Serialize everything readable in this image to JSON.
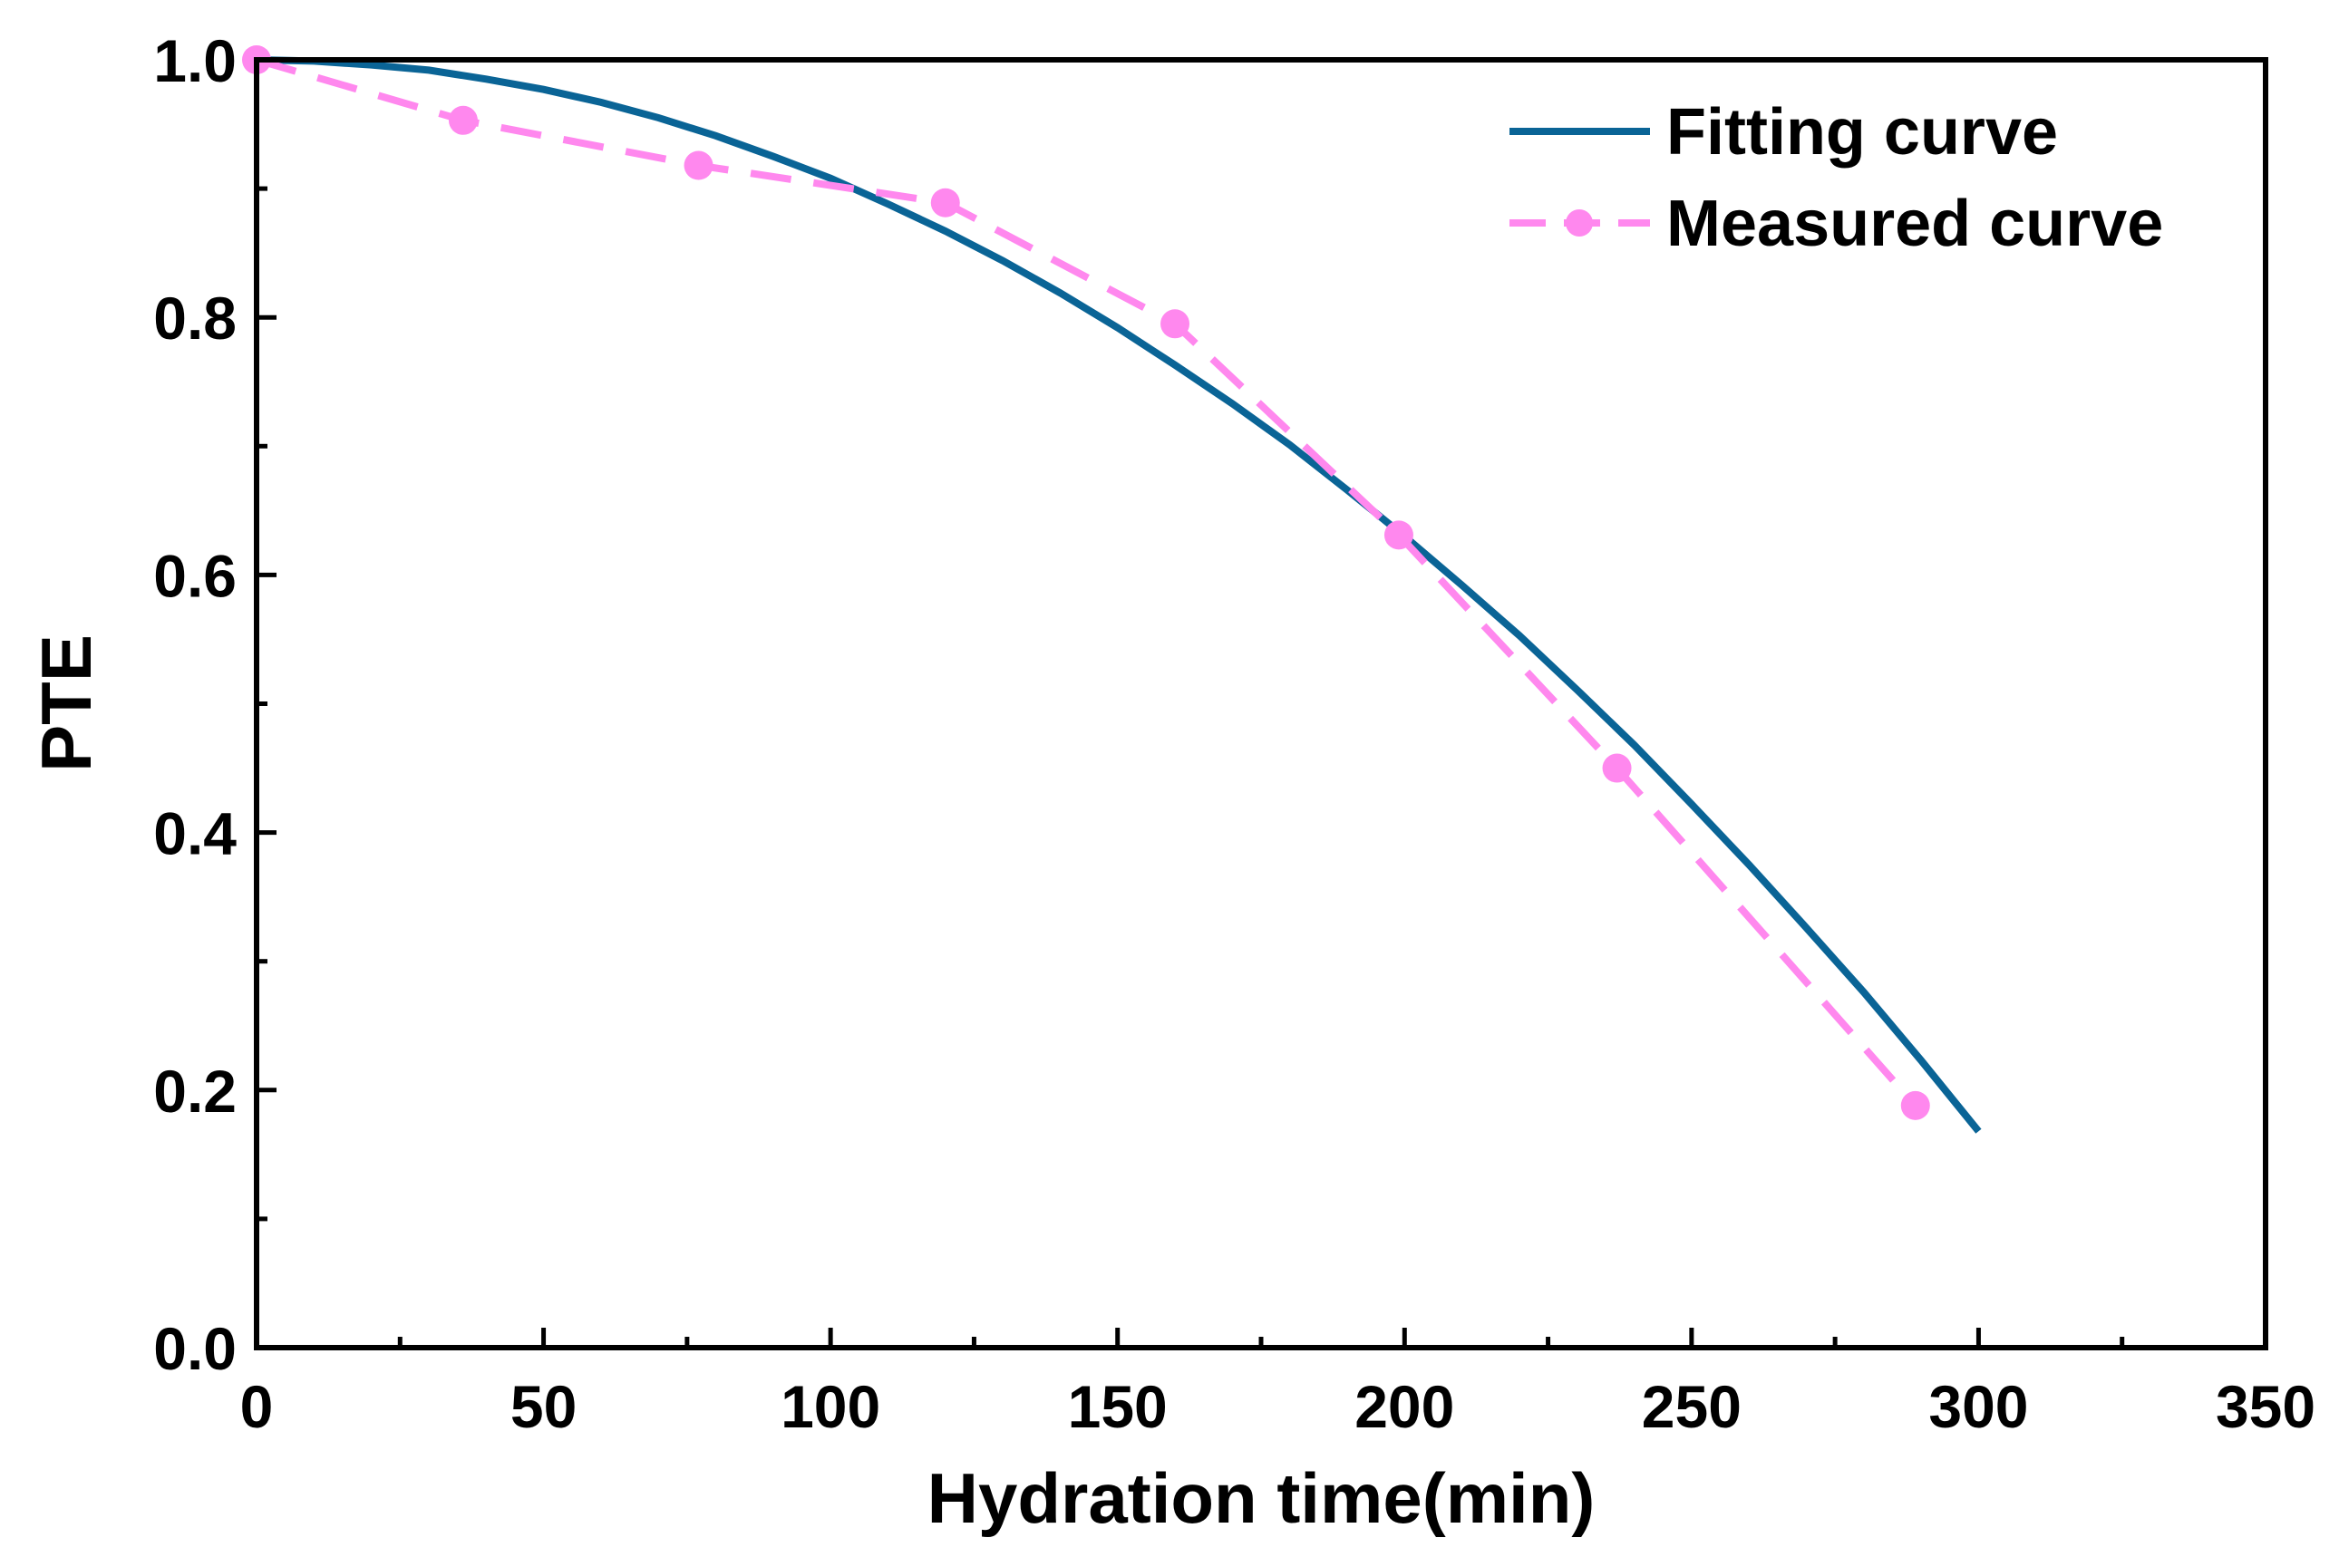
{
  "chart_data": {
    "type": "line",
    "title": "",
    "xlabel": "Hydration time(min)",
    "ylabel": "PTE",
    "xlim": [
      0,
      350
    ],
    "ylim": [
      0,
      1.0
    ],
    "xticks": [
      "0",
      "50",
      "100",
      "150",
      "200",
      "250",
      "300",
      "350"
    ],
    "xtick_values": [
      0,
      50,
      100,
      150,
      200,
      250,
      300,
      350
    ],
    "yticks": [
      "0.0",
      "0.2",
      "0.4",
      "0.6",
      "0.8",
      "1.0"
    ],
    "ytick_values": [
      0,
      0.2,
      0.4,
      0.6,
      0.8,
      1.0
    ],
    "grid": false,
    "legend_position": "top-right",
    "series": [
      {
        "name": "Fitting curve",
        "color": "#0a6496",
        "style": "solid",
        "x": [
          0,
          10,
          20,
          30,
          40,
          50,
          60,
          70,
          80,
          90,
          100,
          110,
          120,
          130,
          140,
          150,
          160,
          170,
          180,
          190,
          200,
          210,
          220,
          230,
          240,
          250,
          260,
          270,
          280,
          290,
          300
        ],
        "y": [
          1.0,
          0.999,
          0.996,
          0.992,
          0.985,
          0.977,
          0.967,
          0.955,
          0.941,
          0.925,
          0.908,
          0.888,
          0.867,
          0.844,
          0.819,
          0.792,
          0.763,
          0.733,
          0.701,
          0.666,
          0.63,
          0.592,
          0.553,
          0.511,
          0.468,
          0.422,
          0.375,
          0.326,
          0.276,
          0.223,
          0.168
        ]
      },
      {
        "name": "Measured curve",
        "color": "#ff88ee",
        "style": "dashed-marker",
        "x": [
          0,
          36,
          77,
          120,
          160,
          199,
          237,
          289
        ],
        "y": [
          1.0,
          0.953,
          0.918,
          0.889,
          0.795,
          0.631,
          0.45,
          0.188
        ]
      }
    ]
  }
}
